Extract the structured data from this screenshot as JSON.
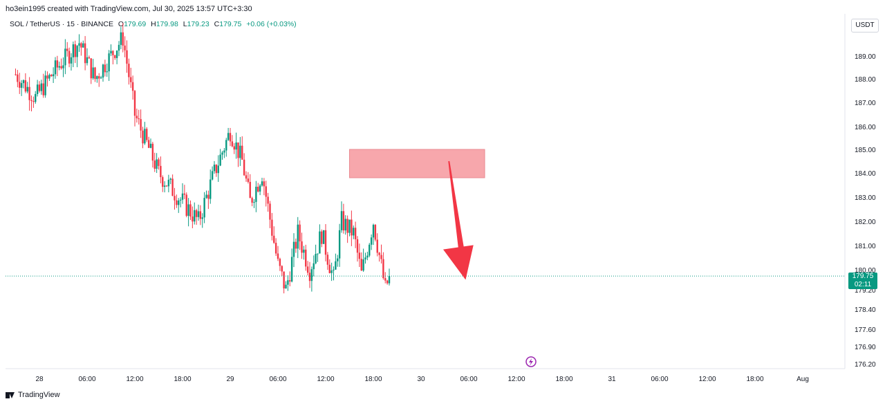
{
  "header": {
    "attribution": "ho3ein1995 created with TradingView.com, Jul 30, 2025 13:57 UTC+3:30"
  },
  "legend": {
    "symbol": "SOL / TetherUS · 15 · BINANCE",
    "o_label": "O",
    "o_value": "179.69",
    "h_label": "H",
    "h_value": "179.98",
    "l_label": "L",
    "l_value": "179.23",
    "c_label": "C",
    "c_value": "179.75",
    "change": "+0.06 (+0.03%)"
  },
  "currency_button": "USDT",
  "last_price": {
    "price": "179.75",
    "countdown": "02:11"
  },
  "footer": {
    "brand": "TradingView"
  },
  "chart_data": {
    "type": "candlestick",
    "series_interval": "15m",
    "y_tick_labels": [
      "189.00",
      "188.00",
      "187.00",
      "186.00",
      "185.00",
      "184.00",
      "183.00",
      "182.00",
      "181.00",
      "180.00",
      "179.20",
      "178.40",
      "177.60",
      "176.90",
      "176.20"
    ],
    "x_tick_labels": [
      "28",
      "06:00",
      "12:00",
      "18:00",
      "29",
      "06:00",
      "12:00",
      "18:00",
      "30",
      "06:00",
      "12:00",
      "18:00",
      "31",
      "06:00",
      "12:00",
      "18:00",
      "Aug"
    ],
    "ylim": [
      176.0,
      190.2
    ],
    "last_close": 179.75,
    "waypoints": [
      {
        "t": 0.0,
        "p": 188.2
      },
      {
        "t": 2.5,
        "p": 187.2
      },
      {
        "t": 5.0,
        "p": 188.4
      },
      {
        "t": 8.0,
        "p": 189.6
      },
      {
        "t": 10.0,
        "p": 188.0
      },
      {
        "t": 13.5,
        "p": 189.8
      },
      {
        "t": 15.0,
        "p": 186.5
      },
      {
        "t": 18.0,
        "p": 184.0
      },
      {
        "t": 20.5,
        "p": 183.0
      },
      {
        "t": 23.0,
        "p": 182.0
      },
      {
        "t": 25.0,
        "p": 184.0
      },
      {
        "t": 27.0,
        "p": 185.8
      },
      {
        "t": 28.5,
        "p": 184.5
      },
      {
        "t": 29.5,
        "p": 182.8
      },
      {
        "t": 31.0,
        "p": 184.0
      },
      {
        "t": 33.0,
        "p": 180.2
      },
      {
        "t": 34.0,
        "p": 179.2
      },
      {
        "t": 35.5,
        "p": 181.5
      },
      {
        "t": 37.0,
        "p": 180.0
      },
      {
        "t": 38.5,
        "p": 181.5
      },
      {
        "t": 40.0,
        "p": 179.6
      },
      {
        "t": 41.0,
        "p": 182.0
      },
      {
        "t": 42.5,
        "p": 181.5
      },
      {
        "t": 43.5,
        "p": 179.8
      },
      {
        "t": 45.0,
        "p": 182.0
      },
      {
        "t": 46.5,
        "p": 179.2
      },
      {
        "t": 47.0,
        "p": 179.75
      }
    ],
    "zone": {
      "x_from": 42.0,
      "x_to": 59.0,
      "y_low": 183.8,
      "y_high": 185.0,
      "color": "#f7a7ac"
    },
    "arrow": {
      "from": {
        "t": 54.5,
        "p": 184.5
      },
      "to": {
        "t": 56.6,
        "p": 179.6
      },
      "color": "#f23645"
    },
    "colors": {
      "up": "#089981",
      "down": "#f23645",
      "price_line": "#089981"
    }
  }
}
